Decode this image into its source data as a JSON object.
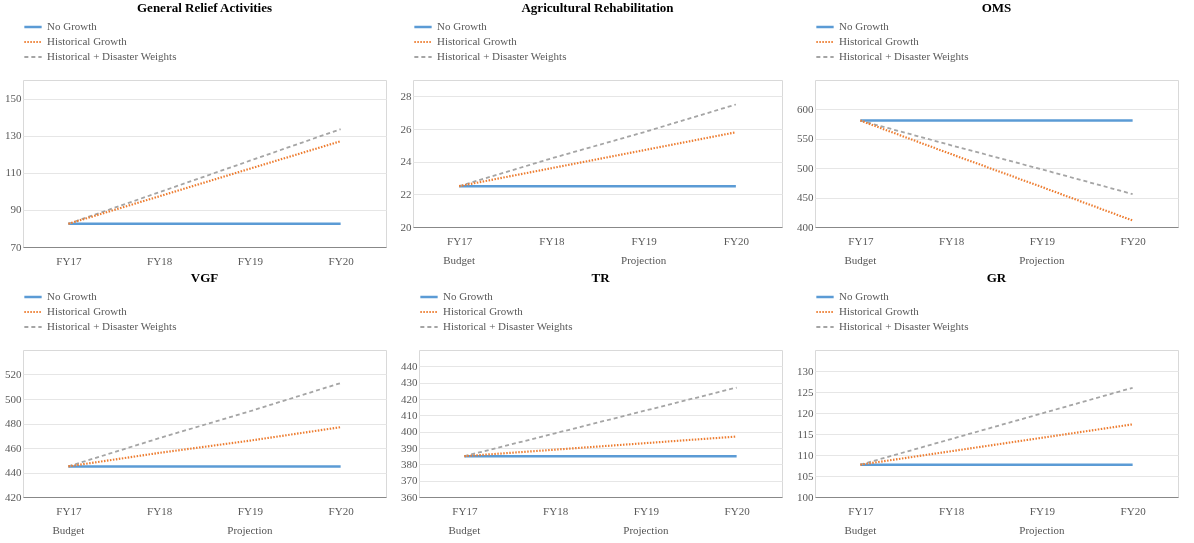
{
  "chart_data": [
    {
      "type": "line",
      "title": "General Relief Activities",
      "categories": [
        "FY17",
        "FY18",
        "FY19",
        "FY20"
      ],
      "ylim": [
        70,
        160
      ],
      "yticks": [
        70,
        90,
        110,
        130,
        150
      ],
      "grid": "y",
      "legend": "top",
      "series": [
        {
          "name": "No Growth",
          "color": "#5b9bd5",
          "line_style": "solid",
          "values": [
            82.5,
            82.5,
            82.5,
            82.5
          ]
        },
        {
          "name": "Historical Growth",
          "color": "#ed7d31",
          "line_style": "dotted",
          "values": [
            82.5,
            97.3,
            112.2,
            127
          ]
        },
        {
          "name": "Historical + Disaster Weights",
          "color": "#a5a5a5",
          "line_style": "dashed",
          "values": [
            82.5,
            99.5,
            116.5,
            133.5
          ]
        }
      ]
    },
    {
      "type": "line",
      "title": "Agricultural Rehabilitation",
      "categories": [
        "FY17",
        "FY18",
        "FY19",
        "FY20"
      ],
      "ylim": [
        20,
        29
      ],
      "yticks": [
        20,
        22,
        24,
        26,
        28
      ],
      "grid": "y",
      "legend": "top",
      "annotations": [
        "Budget",
        "Projection"
      ],
      "series": [
        {
          "name": "No Growth",
          "color": "#5b9bd5",
          "line_style": "solid",
          "values": [
            22.5,
            22.5,
            22.5,
            22.5
          ]
        },
        {
          "name": "Historical Growth",
          "color": "#ed7d31",
          "line_style": "dotted",
          "values": [
            22.5,
            23.6,
            24.7,
            25.8
          ]
        },
        {
          "name": "Historical + Disaster Weights",
          "color": "#a5a5a5",
          "line_style": "dashed",
          "values": [
            22.5,
            24.2,
            25.8,
            27.5
          ]
        }
      ]
    },
    {
      "type": "line",
      "title": "OMS",
      "categories": [
        "FY17",
        "FY18",
        "FY19",
        "FY20"
      ],
      "ylim": [
        400,
        650
      ],
      "yticks": [
        400,
        450,
        500,
        550,
        600
      ],
      "grid": "y",
      "legend": "top",
      "annotations": [
        "Budget",
        "Projection"
      ],
      "series": [
        {
          "name": "No Growth",
          "color": "#5b9bd5",
          "line_style": "solid",
          "values": [
            581,
            581,
            581,
            581
          ]
        },
        {
          "name": "Historical Growth",
          "color": "#ed7d31",
          "line_style": "dotted",
          "values": [
            581,
            524,
            468,
            411
          ]
        },
        {
          "name": "Historical + Disaster Weights",
          "color": "#a5a5a5",
          "line_style": "dashed",
          "values": [
            581,
            539,
            498,
            456
          ]
        }
      ]
    },
    {
      "type": "line",
      "title": "VGF",
      "categories": [
        "FY17",
        "FY18",
        "FY19",
        "FY20"
      ],
      "ylim": [
        420,
        540
      ],
      "yticks": [
        420,
        440,
        460,
        480,
        500,
        520
      ],
      "grid": "y",
      "legend": "top",
      "annotations": [
        "Budget",
        "Projection"
      ],
      "series": [
        {
          "name": "No Growth",
          "color": "#5b9bd5",
          "line_style": "solid",
          "values": [
            445,
            445,
            445,
            445
          ]
        },
        {
          "name": "Historical Growth",
          "color": "#ed7d31",
          "line_style": "dotted",
          "values": [
            445,
            456,
            466,
            477
          ]
        },
        {
          "name": "Historical + Disaster Weights",
          "color": "#a5a5a5",
          "line_style": "dashed",
          "values": [
            445,
            468,
            490,
            513
          ]
        }
      ]
    },
    {
      "type": "line",
      "title": "TR",
      "categories": [
        "FY17",
        "FY18",
        "FY19",
        "FY20"
      ],
      "ylim": [
        360,
        450
      ],
      "yticks": [
        360,
        370,
        380,
        390,
        400,
        410,
        420,
        430,
        440
      ],
      "grid": "y",
      "legend": "top",
      "annotations": [
        "Budget",
        "Projection"
      ],
      "series": [
        {
          "name": "No Growth",
          "color": "#5b9bd5",
          "line_style": "solid",
          "values": [
            385,
            385,
            385,
            385
          ]
        },
        {
          "name": "Historical Growth",
          "color": "#ed7d31",
          "line_style": "dotted",
          "values": [
            385,
            389,
            393,
            397
          ]
        },
        {
          "name": "Historical + Disaster Weights",
          "color": "#a5a5a5",
          "line_style": "dashed",
          "values": [
            385,
            399,
            413,
            427
          ]
        }
      ]
    },
    {
      "type": "line",
      "title": "GR",
      "categories": [
        "FY17",
        "FY18",
        "FY19",
        "FY20"
      ],
      "ylim": [
        100,
        135
      ],
      "yticks": [
        100,
        105,
        110,
        115,
        120,
        125,
        130
      ],
      "grid": "y",
      "legend": "top",
      "annotations": [
        "Budget",
        "Projection"
      ],
      "series": [
        {
          "name": "No Growth",
          "color": "#5b9bd5",
          "line_style": "solid",
          "values": [
            107.7,
            107.7,
            107.7,
            107.7
          ]
        },
        {
          "name": "Historical Growth",
          "color": "#ed7d31",
          "line_style": "dotted",
          "values": [
            107.7,
            110.9,
            114.1,
            117.3
          ]
        },
        {
          "name": "Historical + Disaster Weights",
          "color": "#a5a5a5",
          "line_style": "dashed",
          "values": [
            107.7,
            113.8,
            119.9,
            126
          ]
        }
      ]
    }
  ]
}
